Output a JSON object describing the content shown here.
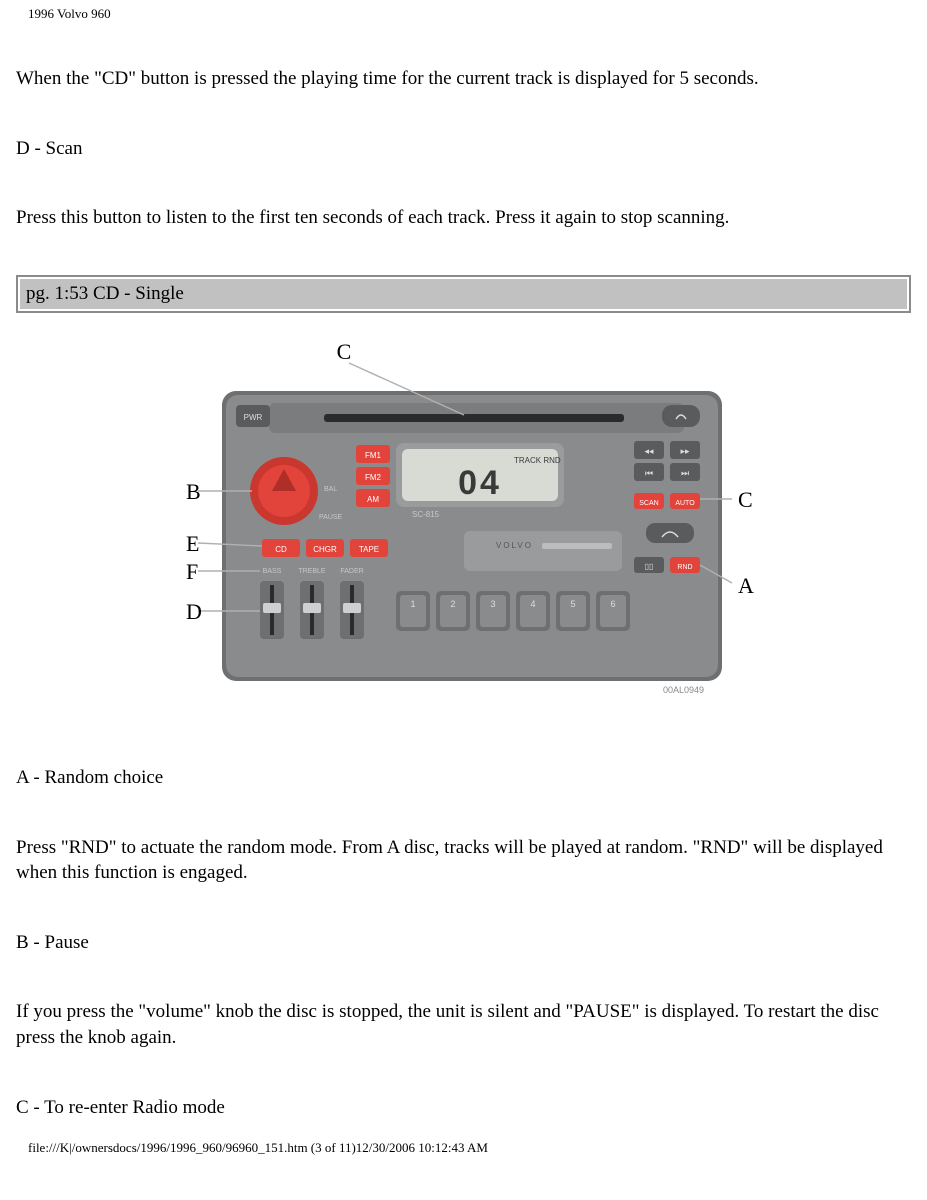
{
  "header": {
    "title": "1996 Volvo 960"
  },
  "paragraphs": {
    "p1": "When the \"CD\" button is pressed the playing time for the current track is displayed for 5 seconds.",
    "p2": "D - Scan",
    "p3": "Press this button to listen to the first ten seconds of each track. Press it again to stop scanning.",
    "section_bar": "pg. 1:53 CD - Single",
    "p4": "A - Random choice",
    "p5": "Press \"RND\" to actuate the random mode. From A disc, tracks will be played at random. \"RND\" will be displayed when this function is engaged.",
    "p6": "B - Pause",
    "p7": "If you press the \"volume\" knob the disc is stopped, the unit is silent and \"PAUSE\" is displayed. To restart the disc press the knob again.",
    "p8": "C - To re-enter Radio mode"
  },
  "footer": {
    "text": "file:///K|/ownersdocs/1996/1996_960/96960_151.htm (3 of 11)12/30/2006 10:12:43 AM"
  },
  "stereo": {
    "face_color": "#8a8b8c",
    "inner_color": "#7b7c7e",
    "red": "#e2433a",
    "red_dark": "#c9372f",
    "lcd_bg": "#d7dbd3",
    "lcd_text_color": "#3a3a3a",
    "dark_btn": "#5a5b5d",
    "slot_color": "#2b2b2b",
    "display_top_text": "TRACK  RND",
    "display_main": "04",
    "sc_label": "SC-815",
    "brand": "VOLVO",
    "btn_pwr": "PWR",
    "btn_fm1": "FM1",
    "btn_fm2": "FM2",
    "btn_am": "AM",
    "btn_cd": "CD",
    "btn_chgr": "CHGR",
    "btn_tape": "TAPE",
    "btn_scan": "SCAN",
    "btn_auto": "AUTO",
    "btn_rnd": "RND",
    "lbl_bass": "BASS",
    "lbl_treble": "TREBLE",
    "lbl_fader": "FADER",
    "lbl_bal": "BAL",
    "lbl_pause": "PAUSE",
    "preset_labels": [
      "1",
      "2",
      "3",
      "4",
      "5",
      "6"
    ],
    "callouts": {
      "A": "A",
      "B": "B",
      "C": "C",
      "D": "D",
      "E": "E",
      "F": "F"
    },
    "callout_font": 22,
    "partno": "00AL0949",
    "line_color": "#b0b0b0"
  }
}
